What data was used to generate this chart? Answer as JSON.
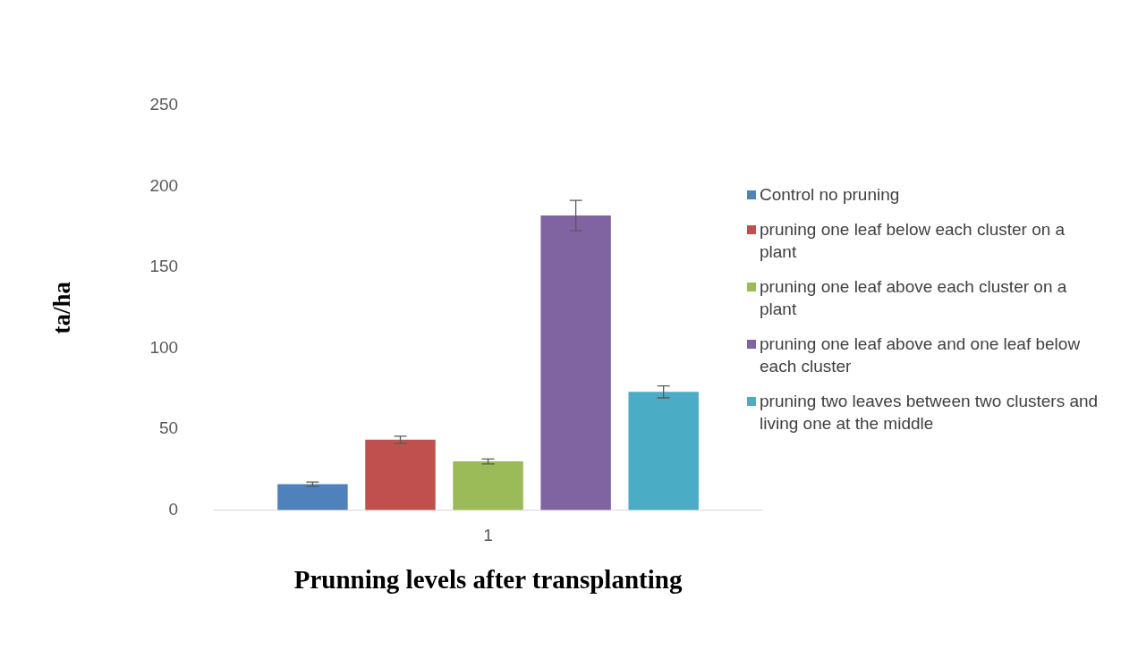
{
  "chart_data": {
    "type": "bar",
    "xlabel": "Prunning levels after transplanting",
    "ylabel": "ta/ha",
    "categories": [
      "1"
    ],
    "series": [
      {
        "name": "Control no pruning",
        "color": "#4f81bd",
        "values": [
          16
        ],
        "errors": [
          1.3
        ]
      },
      {
        "name": "pruning one leaf below each cluster on a plant",
        "color": "#c0504d",
        "values": [
          43.4
        ],
        "errors": [
          2.2
        ]
      },
      {
        "name": "pruning one leaf above each cluster on a plant",
        "color": "#9bbb59",
        "values": [
          30
        ],
        "errors": [
          1.5
        ]
      },
      {
        "name": "pruning one leaf above and one leaf below each cluster",
        "color": "#8064a2",
        "values": [
          182
        ],
        "errors": [
          9.3
        ]
      },
      {
        "name": "pruning two leaves between two clusters and living one at the middle",
        "color": "#4bacc6",
        "values": [
          73
        ],
        "errors": [
          3.7
        ]
      }
    ],
    "ylim": [
      0,
      250
    ],
    "yticks": [
      0,
      50,
      100,
      150,
      200,
      250
    ],
    "grid": false,
    "legend": "right"
  }
}
